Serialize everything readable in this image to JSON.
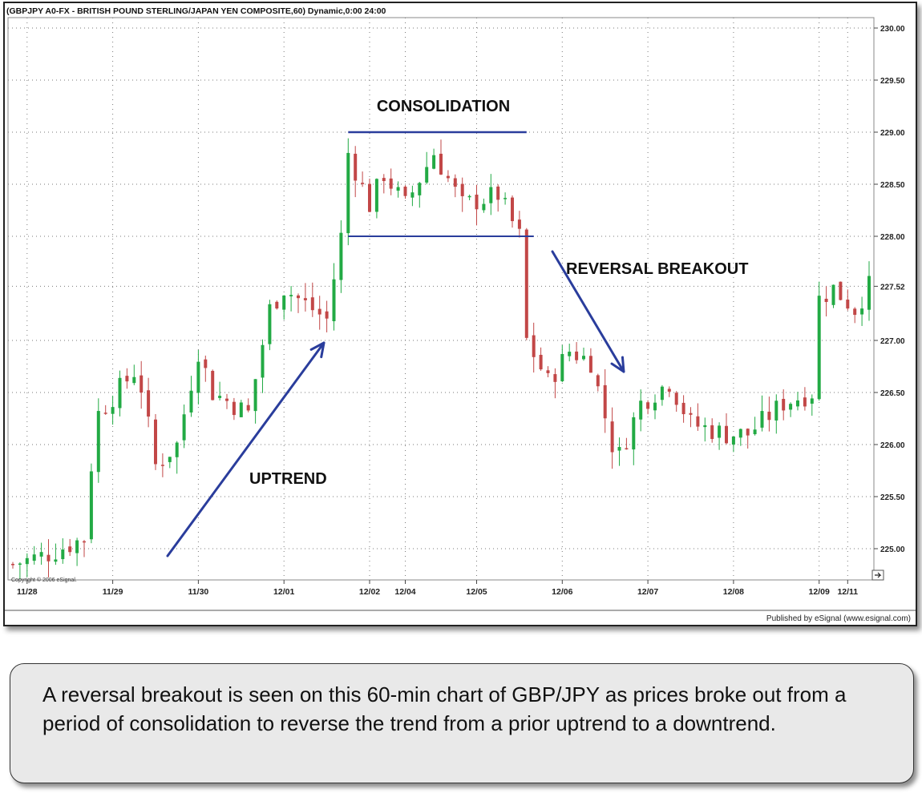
{
  "chart_data": {
    "type": "candlestick",
    "title": "(GBPJPY A0-FX - BRITISH POUND STERLING/JAPAN YEN COMPOSITE,60) Dynamic,0:00 24:00",
    "ylim": [
      224.7,
      230.1
    ],
    "yticks": [
      "230.00",
      "229.50",
      "229.00",
      "228.50",
      "228.00",
      "227.52",
      "227.00",
      "226.50",
      "226.00",
      "225.50",
      "225.00"
    ],
    "ytick_values": [
      230.0,
      229.5,
      229.0,
      228.5,
      228.0,
      227.52,
      227.0,
      226.5,
      226.0,
      225.5,
      225.0
    ],
    "xticks": [
      "11/28",
      "11/29",
      "11/30",
      "12/01",
      "12/02",
      "12/04",
      "12/05",
      "12/06",
      "12/07",
      "12/08",
      "12/09",
      "12/11"
    ],
    "xtick_index": [
      2,
      14,
      26,
      38,
      50,
      55,
      65,
      77,
      89,
      101,
      113,
      117
    ],
    "bar_count": 121,
    "colors": {
      "up": "#22aa44",
      "down": "#c24747",
      "annotation": "#2a3d9c",
      "grid": "#7a7a7a"
    },
    "price_path": [
      [
        0,
        224.85
      ],
      [
        5,
        224.95
      ],
      [
        10,
        225.1
      ],
      [
        11,
        225.8
      ],
      [
        12,
        226.3
      ],
      [
        17,
        226.7
      ],
      [
        18,
        226.55
      ],
      [
        20,
        225.8
      ],
      [
        23,
        226.0
      ],
      [
        26,
        226.9
      ],
      [
        28,
        226.5
      ],
      [
        33,
        226.3
      ],
      [
        36,
        227.3
      ],
      [
        38,
        227.5
      ],
      [
        44,
        227.2
      ],
      [
        46,
        228.0
      ],
      [
        47,
        228.8
      ],
      [
        50,
        228.3
      ],
      [
        52,
        228.6
      ],
      [
        55,
        228.3
      ],
      [
        59,
        228.8
      ],
      [
        63,
        228.3
      ],
      [
        68,
        228.4
      ],
      [
        71,
        228.0
      ],
      [
        72,
        227.0
      ],
      [
        75,
        226.6
      ],
      [
        78,
        226.9
      ],
      [
        81,
        226.8
      ],
      [
        84,
        226.0
      ],
      [
        85,
        225.9
      ],
      [
        88,
        226.4
      ],
      [
        92,
        226.6
      ],
      [
        95,
        226.2
      ],
      [
        100,
        226.1
      ],
      [
        103,
        226.1
      ],
      [
        108,
        226.4
      ],
      [
        112,
        226.5
      ],
      [
        113,
        227.4
      ],
      [
        115,
        227.5
      ],
      [
        118,
        227.3
      ],
      [
        120,
        227.52
      ]
    ],
    "annotations": {
      "consolidation": "CONSOLIDATION",
      "reversal": "REVERSAL BREAKOUT",
      "uptrend": "UPTREND",
      "copyright": "Copyright © 2006 eSignal.",
      "published": "Published by eSignal (www.esignal.com)"
    },
    "levels": {
      "resistance": 229.0,
      "support": 228.0
    }
  },
  "caption": "A reversal breakout is seen on this 60-min chart of GBP/JPY as prices broke out from a period of consolidation to reverse the trend from a prior uptrend to a downtrend."
}
